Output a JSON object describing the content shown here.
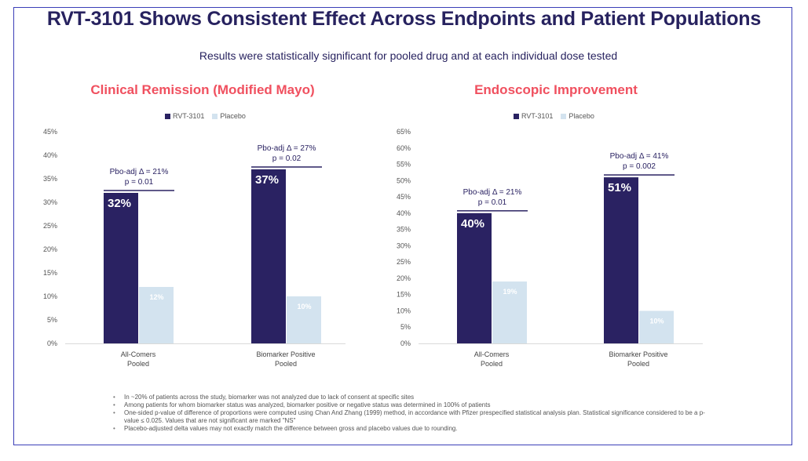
{
  "slide": {
    "title": "RVT-3101 Shows Consistent Effect Across Endpoints and Patient Populations",
    "subtitle": "Results were statistically significant for pooled drug and at each individual dose tested",
    "colors": {
      "rvt": "#2a2262",
      "placebo": "#d3e3ef",
      "accent": "#f0505f",
      "frame": "#3b3fb8"
    }
  },
  "legend": {
    "series1": "RVT-3101",
    "series2": "Placebo"
  },
  "chart_data": [
    {
      "type": "bar",
      "title": "Clinical Remission (Modified Mayo)",
      "categories": [
        "All-Comers\nPooled",
        "Biomarker Positive\nPooled"
      ],
      "category_lines": [
        [
          "All-Comers",
          "Pooled"
        ],
        [
          "Biomarker Positive",
          "Pooled"
        ]
      ],
      "series": [
        {
          "name": "RVT-3101",
          "values": [
            32,
            37
          ],
          "labels": [
            "32%",
            "37%"
          ]
        },
        {
          "name": "Placebo",
          "values": [
            12,
            10
          ],
          "labels": [
            "12%",
            "10%"
          ]
        }
      ],
      "annotations": [
        {
          "line1": "Pbo-adj Δ = 21%",
          "line2": "p = 0.01"
        },
        {
          "line1": "Pbo-adj Δ = 27%",
          "line2": "p = 0.02"
        }
      ],
      "ylim": [
        0,
        45
      ],
      "ytick_step": 5,
      "yticks": [
        "0%",
        "5%",
        "10%",
        "15%",
        "20%",
        "25%",
        "30%",
        "35%",
        "40%",
        "45%"
      ],
      "xlabel": "",
      "ylabel": "",
      "legend_position": "top-center",
      "grid": false
    },
    {
      "type": "bar",
      "title": "Endoscopic Improvement",
      "categories": [
        "All-Comers\nPooled",
        "Biomarker Positive\nPooled"
      ],
      "category_lines": [
        [
          "All-Comers",
          "Pooled"
        ],
        [
          "Biomarker Positive",
          "Pooled"
        ]
      ],
      "series": [
        {
          "name": "RVT-3101",
          "values": [
            40,
            51
          ],
          "labels": [
            "40%",
            "51%"
          ]
        },
        {
          "name": "Placebo",
          "values": [
            19,
            10
          ],
          "labels": [
            "19%",
            "10%"
          ]
        }
      ],
      "annotations": [
        {
          "line1": "Pbo-adj Δ = 21%",
          "line2": "p = 0.01"
        },
        {
          "line1": "Pbo-adj Δ = 41%",
          "line2": "p = 0.002"
        }
      ],
      "ylim": [
        0,
        65
      ],
      "ytick_step": 5,
      "yticks": [
        "0%",
        "5%",
        "10%",
        "15%",
        "20%",
        "25%",
        "30%",
        "35%",
        "40%",
        "45%",
        "50%",
        "55%",
        "60%",
        "65%"
      ],
      "xlabel": "",
      "ylabel": "",
      "legend_position": "top-center",
      "grid": false
    }
  ],
  "footnotes": [
    "In ~20% of patients across the study, biomarker was not analyzed due to lack of consent at specific sites",
    "Among patients for whom biomarker status was analyzed, biomarker positive or negative status was determined in 100% of patients",
    "One-sided p-value of difference of proportions were computed using Chan And Zhang (1999) method, in accordance with Pfizer prespecified statistical analysis plan. Statistical significance considered to be a p-value ≤ 0.025. Values that are not significant are marked \"NS\"",
    "Placebo-adjusted delta values may not exactly match the difference between gross and placebo values due to rounding."
  ]
}
